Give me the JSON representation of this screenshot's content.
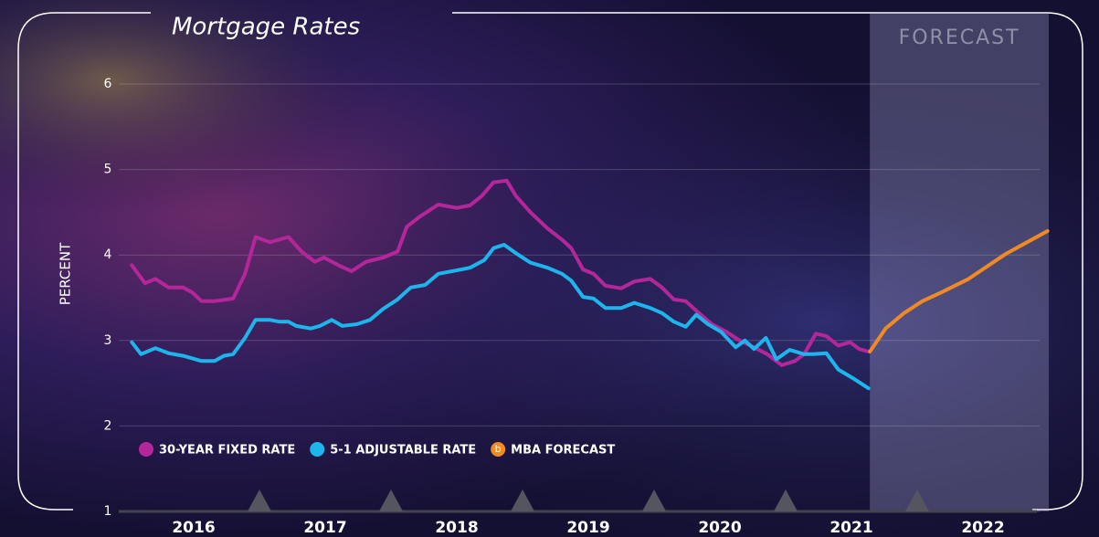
{
  "chart_data": {
    "type": "line",
    "title": "Mortgage Rates",
    "y_label": "PERCENT",
    "xlim": [
      2016,
      2023
    ],
    "xticks": [
      {
        "value": 2016.5,
        "label": "2016"
      },
      {
        "value": 2017.5,
        "label": "2017"
      },
      {
        "value": 2018.5,
        "label": "2018"
      },
      {
        "value": 2019.5,
        "label": "2019"
      },
      {
        "value": 2020.5,
        "label": "2020"
      },
      {
        "value": 2021.5,
        "label": "2021"
      },
      {
        "value": 2022.5,
        "label": "2022"
      }
    ],
    "ylim": [
      1,
      6
    ],
    "yticks": [
      1,
      2,
      3,
      4,
      5,
      6
    ],
    "grid": true,
    "shaded_region": {
      "label": "FORECAST",
      "range": [
        2021.64,
        2023
      ]
    },
    "series": [
      {
        "name": "30-YEAR FIXED RATE",
        "color": "#b5269a",
        "x": [
          2016.03,
          2016.13,
          2016.21,
          2016.31,
          2016.42,
          2016.49,
          2016.56,
          2016.66,
          2016.8,
          2016.89,
          2016.97,
          2017.08,
          2017.22,
          2017.32,
          2017.42,
          2017.49,
          2017.6,
          2017.7,
          2017.81,
          2017.94,
          2018.05,
          2018.12,
          2018.22,
          2018.36,
          2018.5,
          2018.6,
          2018.69,
          2018.78,
          2018.88,
          2018.95,
          2019.06,
          2019.19,
          2019.3,
          2019.37,
          2019.46,
          2019.54,
          2019.63,
          2019.75,
          2019.85,
          2019.97,
          2020.06,
          2020.15,
          2020.24,
          2020.34,
          2020.44,
          2020.55,
          2020.65,
          2020.76,
          2020.86,
          2020.97,
          2021.07,
          2021.14,
          2021.23,
          2021.31,
          2021.4,
          2021.49,
          2021.56,
          2021.63
        ],
        "values": [
          3.88,
          3.67,
          3.72,
          3.62,
          3.62,
          3.56,
          3.46,
          3.46,
          3.49,
          3.78,
          4.21,
          4.15,
          4.21,
          4.04,
          3.92,
          3.97,
          3.88,
          3.81,
          3.92,
          3.97,
          4.04,
          4.33,
          4.45,
          4.59,
          4.55,
          4.58,
          4.69,
          4.85,
          4.87,
          4.69,
          4.5,
          4.31,
          4.18,
          4.08,
          3.83,
          3.78,
          3.64,
          3.61,
          3.69,
          3.72,
          3.62,
          3.48,
          3.46,
          3.32,
          3.19,
          3.1,
          3.0,
          2.92,
          2.84,
          2.71,
          2.76,
          2.84,
          3.08,
          3.05,
          2.94,
          2.98,
          2.9,
          2.87
        ]
      },
      {
        "name": "5-1 ADJUSTABLE RATE",
        "color": "#1eb4ec",
        "x": [
          2016.03,
          2016.1,
          2016.21,
          2016.31,
          2016.42,
          2016.56,
          2016.66,
          2016.73,
          2016.8,
          2016.89,
          2016.97,
          2017.08,
          2017.15,
          2017.22,
          2017.28,
          2017.39,
          2017.46,
          2017.55,
          2017.63,
          2017.74,
          2017.84,
          2017.94,
          2018.05,
          2018.15,
          2018.26,
          2018.36,
          2018.5,
          2018.6,
          2018.71,
          2018.78,
          2018.86,
          2018.95,
          2019.06,
          2019.19,
          2019.3,
          2019.37,
          2019.46,
          2019.54,
          2019.63,
          2019.75,
          2019.85,
          2019.97,
          2020.06,
          2020.15,
          2020.24,
          2020.32,
          2020.41,
          2020.51,
          2020.62,
          2020.69,
          2020.76,
          2020.85,
          2020.93,
          2021.03,
          2021.14,
          2021.21,
          2021.31,
          2021.4,
          2021.52,
          2021.63
        ],
        "values": [
          2.98,
          2.84,
          2.91,
          2.85,
          2.82,
          2.76,
          2.76,
          2.82,
          2.84,
          3.03,
          3.24,
          3.24,
          3.22,
          3.22,
          3.17,
          3.14,
          3.17,
          3.24,
          3.17,
          3.19,
          3.24,
          3.37,
          3.48,
          3.62,
          3.65,
          3.78,
          3.82,
          3.85,
          3.94,
          4.08,
          4.12,
          4.02,
          3.91,
          3.85,
          3.78,
          3.7,
          3.51,
          3.49,
          3.38,
          3.38,
          3.44,
          3.38,
          3.32,
          3.22,
          3.16,
          3.3,
          3.19,
          3.1,
          2.92,
          3.0,
          2.9,
          3.03,
          2.78,
          2.89,
          2.84,
          2.84,
          2.85,
          2.66,
          2.55,
          2.44
        ]
      },
      {
        "name": "MBA FORECAST",
        "color": "#f08a24",
        "marker_label": "b",
        "x": [
          2021.64,
          2021.76,
          2021.9,
          2022.04,
          2022.18,
          2022.39,
          2022.67,
          2022.99
        ],
        "values": [
          2.87,
          3.14,
          3.32,
          3.46,
          3.56,
          3.72,
          4.01,
          4.28
        ]
      }
    ]
  }
}
